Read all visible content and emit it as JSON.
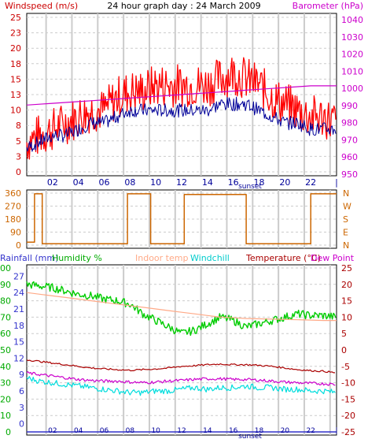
{
  "header": {
    "title": "24 hour graph day : 24 March 2009",
    "left_title": "Windspeed (m/s)",
    "right_title": "Barometer (hPa)"
  },
  "colors": {
    "wind": "#ff0000",
    "avg_wind": "#000099",
    "barometer": "#cc00cc",
    "direction": "#cc6600",
    "rainfall": "#3333cc",
    "humidity": "#00cc00",
    "indoor": "#ffaa88",
    "windchill": "#00dddd",
    "temperature": "#aa0000",
    "dewpoint": "#cc00cc",
    "grid": "#cccccc",
    "border": "#000000",
    "marker": "#4444aa"
  },
  "chart_data": [
    {
      "type": "line",
      "name": "wind-barometer",
      "x_ticks": [
        "02",
        "04",
        "06",
        "08",
        "10",
        "12",
        "14",
        "16",
        "18",
        "20",
        "22"
      ],
      "x_end_tick": "|",
      "sunset_label": "sunset",
      "left_ticks": [
        "25",
        "23",
        "20",
        "18",
        "15",
        "13",
        "10",
        "8",
        "5",
        "3",
        "0"
      ],
      "right_ticks": [
        "1040",
        "1030",
        "1020",
        "1010",
        "1000",
        "990",
        "980",
        "970",
        "960",
        "950"
      ],
      "ylim_left": [
        0,
        25
      ],
      "ylim_right": [
        950,
        1040
      ],
      "x": [
        0,
        1,
        2,
        3,
        4,
        5,
        6,
        7,
        8,
        9,
        10,
        11,
        12,
        13,
        14,
        15,
        16,
        17,
        18,
        19,
        20,
        21,
        22,
        23,
        24
      ],
      "series": [
        {
          "values": [
            5,
            6,
            7,
            8,
            9,
            10,
            10,
            12,
            13,
            13,
            14,
            14,
            14,
            14,
            14,
            15,
            16,
            15,
            14,
            12,
            11,
            10,
            9,
            9,
            8
          ]
        },
        {
          "values": [
            4,
            5,
            6,
            6,
            7,
            8,
            8,
            9,
            10,
            10,
            10,
            10,
            10,
            10,
            10,
            11,
            11,
            11,
            10,
            9,
            8,
            8,
            7,
            7,
            7
          ]
        },
        {
          "values": [
            989,
            989.5,
            990,
            990.5,
            991,
            991.5,
            992,
            992.5,
            993,
            993.5,
            994,
            994.5,
            995,
            995.5,
            996,
            996.5,
            997,
            997.5,
            998,
            998.5,
            999,
            999.5,
            1000,
            1000,
            1000
          ]
        }
      ]
    },
    {
      "type": "line",
      "name": "wind-direction",
      "left_ticks": [
        "360",
        "270",
        "180",
        "90",
        "0"
      ],
      "right_ticks": [
        "N",
        "W",
        "S",
        "E",
        "N"
      ],
      "ylim": [
        0,
        360
      ],
      "x": [
        0,
        0.6,
        0.6,
        1.2,
        1.2,
        7.8,
        7.8,
        9.6,
        9.6,
        12.2,
        12.2,
        17.0,
        17.0,
        22.0,
        22.0,
        24.0
      ],
      "values": [
        20,
        20,
        355,
        355,
        10,
        10,
        355,
        355,
        10,
        10,
        350,
        350,
        10,
        10,
        355,
        355
      ]
    },
    {
      "type": "line",
      "name": "temperature-humidity",
      "labels": [
        "Rainfall (mm)",
        "Humidity %",
        "Indoor temp",
        "Windchill",
        "Temperature (°C)",
        "Dew Point"
      ],
      "left_ticks_rain": [
        "100",
        "90",
        "80",
        "70",
        "60",
        "50",
        "40",
        "30",
        "20",
        "10",
        "0"
      ],
      "left_ticks_humidity": [
        "27",
        "24",
        "21",
        "18",
        "15",
        "12",
        "9",
        "6",
        "3",
        "0"
      ],
      "right_ticks_temp": [
        "25",
        "20",
        "15",
        "10",
        "5",
        "0",
        "-5",
        "-10",
        "-15",
        "-20",
        "-25"
      ],
      "ylim_humidity": [
        0,
        100
      ],
      "ylim_temp": [
        -25,
        25
      ],
      "x": [
        0,
        1,
        2,
        3,
        4,
        5,
        6,
        7,
        8,
        9,
        10,
        11,
        12,
        13,
        14,
        15,
        16,
        17,
        18,
        19,
        20,
        21,
        22,
        23,
        24
      ],
      "series": [
        {
          "values": [
            90,
            89,
            88,
            86,
            84,
            83,
            81,
            80,
            78,
            72,
            68,
            64,
            60,
            62,
            66,
            70,
            68,
            64,
            66,
            68,
            70,
            72,
            71,
            71,
            70
          ]
        },
        {
          "values": [
            17.5,
            17,
            16.5,
            16,
            15.5,
            15,
            14.5,
            14,
            13.5,
            13,
            12.5,
            12,
            11.5,
            11,
            10.5,
            10,
            9.8,
            9.6,
            9.5,
            9.4,
            9.3,
            9.2,
            9.1,
            9.0,
            9.0
          ]
        },
        {
          "values": [
            -8.5,
            -9.5,
            -10,
            -10.5,
            -11,
            -11.5,
            -12,
            -12.5,
            -13,
            -13,
            -12.5,
            -12.5,
            -12,
            -11.5,
            -12,
            -11.5,
            -11.5,
            -11,
            -11.5,
            -11.5,
            -12,
            -12,
            -12.5,
            -12.5,
            -13
          ]
        },
        {
          "values": [
            -3,
            -3.5,
            -4,
            -4.5,
            -5,
            -5.5,
            -5.8,
            -6,
            -6.2,
            -6,
            -5.8,
            -5.5,
            -5,
            -4.8,
            -4.5,
            -4.3,
            -4.5,
            -4.5,
            -4.7,
            -5,
            -5.5,
            -6,
            -6.3,
            -6.5,
            -7
          ]
        },
        {
          "values": [
            -7,
            -7.5,
            -8,
            -8.5,
            -9,
            -9.3,
            -9.5,
            -9.5,
            -9.8,
            -10,
            -9.8,
            -9.5,
            -9.3,
            -9,
            -8.8,
            -8.8,
            -9,
            -9,
            -9.2,
            -9.5,
            -9.8,
            -10,
            -10.2,
            -10.3,
            -10.5
          ]
        },
        {
          "values": [
            0,
            0,
            0,
            0,
            0,
            0,
            0,
            0,
            0,
            0,
            0,
            0,
            0,
            0,
            0,
            0,
            0,
            0,
            0,
            0,
            0,
            0,
            0,
            0,
            0
          ]
        }
      ]
    }
  ]
}
